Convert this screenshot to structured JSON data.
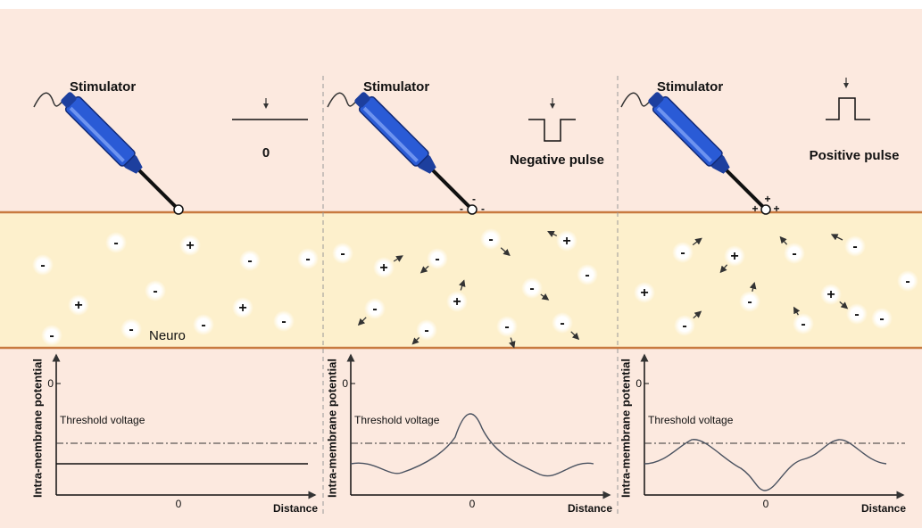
{
  "neuron_label": "Neuro",
  "panels": [
    {
      "stimulator": "Stimulator",
      "pulse_label": "0",
      "tip_charges": [],
      "ions": [
        "-",
        "+",
        "-",
        "-",
        "-",
        "-",
        "+",
        "+",
        "-",
        "-",
        "-",
        "-"
      ],
      "graph": {
        "y_label": "Intra-membrane potential",
        "y_zero": "0",
        "threshold_label": "Threshold voltage",
        "x_zero": "0",
        "x_label": "Distance"
      }
    },
    {
      "stimulator": "Stimulator",
      "pulse_label": "Negative pulse",
      "tip_charges": [
        "-",
        "-",
        "-"
      ],
      "ions": [
        "-",
        "-",
        "+",
        "-",
        "+",
        "-",
        "-",
        "+",
        "-",
        "-",
        "-",
        "-"
      ],
      "graph": {
        "y_label": "Intra-membrane potential",
        "y_zero": "0",
        "threshold_label": "Threshold voltage",
        "x_zero": "0",
        "x_label": "Distance"
      }
    },
    {
      "stimulator": "Stimulator",
      "pulse_label": "Positive pulse",
      "tip_charges": [
        "+",
        "+",
        "+"
      ],
      "ions": [
        "-",
        "+",
        "-",
        "-",
        "-",
        "+",
        "-",
        "+",
        "-",
        "-",
        "-",
        "-"
      ],
      "graph": {
        "y_label": "Intra-membrane potential",
        "y_zero": "0",
        "threshold_label": "Threshold voltage",
        "x_zero": "0",
        "x_label": "Distance"
      }
    }
  ]
}
